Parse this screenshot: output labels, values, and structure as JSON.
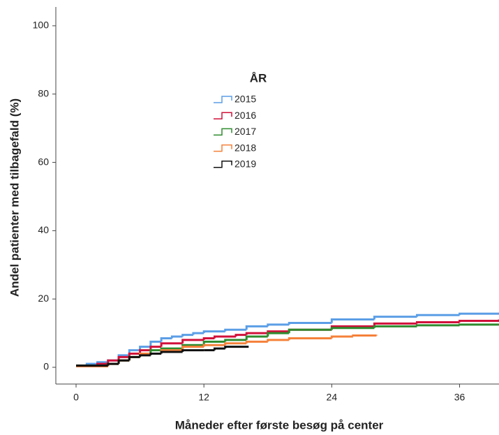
{
  "chart_data": {
    "type": "line",
    "step": "post",
    "y_axis_label": "Andel patienter med tilbagefald (%)",
    "x_axis_label": "Måneder efter første besøg på center",
    "legend_title": "ÅR",
    "xlim": [
      -1.9,
      39.7
    ],
    "ylim": [
      -4.9,
      105.5
    ],
    "xticks": [
      0,
      12,
      24,
      36
    ],
    "yticks": [
      0,
      20,
      40,
      60,
      80,
      100
    ],
    "series": [
      {
        "name": "2015",
        "color": "#5b9ee6",
        "x": [
          0,
          1,
          2,
          3,
          4,
          5,
          6,
          7,
          8,
          9,
          10,
          11,
          12,
          14,
          16,
          18,
          20,
          24,
          28,
          32,
          36,
          39.7
        ],
        "values": [
          0.5,
          1,
          1.5,
          2,
          3.5,
          5,
          6,
          7.5,
          8.5,
          9,
          9.5,
          10,
          10.5,
          11,
          12,
          12.5,
          13,
          14,
          14.8,
          15.3,
          15.7,
          16
        ]
      },
      {
        "name": "2016",
        "color": "#d0103a",
        "x": [
          0,
          2,
          3,
          4,
          5,
          6,
          7,
          8,
          10,
          12,
          13,
          15,
          16,
          18,
          20,
          24,
          28,
          32,
          36,
          39.7
        ],
        "values": [
          0.5,
          1,
          2,
          3,
          4,
          5,
          6,
          7,
          8,
          8.5,
          9,
          9.5,
          10,
          10.5,
          11,
          12,
          12.8,
          13.2,
          13.6,
          14
        ]
      },
      {
        "name": "2017",
        "color": "#2e8b2e",
        "x": [
          0,
          3,
          4,
          5,
          6,
          7,
          8,
          10,
          12,
          14,
          16,
          18,
          20,
          24,
          28,
          32,
          36,
          39.7
        ],
        "values": [
          0.5,
          1,
          2,
          3,
          4,
          5,
          5.5,
          6.5,
          7.5,
          8,
          9,
          10,
          11,
          11.5,
          12,
          12.3,
          12.5,
          12.5
        ]
      },
      {
        "name": "2018",
        "color": "#f5813a",
        "x": [
          0,
          3,
          4,
          5,
          6,
          8,
          10,
          12,
          14,
          16,
          18,
          20,
          24,
          26,
          28.2
        ],
        "values": [
          0.3,
          1,
          2,
          3,
          4,
          5,
          6,
          6.5,
          7,
          7.5,
          8,
          8.5,
          9,
          9.3,
          9.5
        ]
      },
      {
        "name": "2019",
        "color": "#111111",
        "x": [
          0,
          3,
          4,
          5,
          6,
          7,
          8,
          10,
          12,
          13,
          14,
          16.2
        ],
        "values": [
          0.5,
          1,
          2,
          3,
          3.5,
          4,
          4.5,
          5,
          5,
          5.5,
          6,
          6
        ]
      }
    ]
  }
}
